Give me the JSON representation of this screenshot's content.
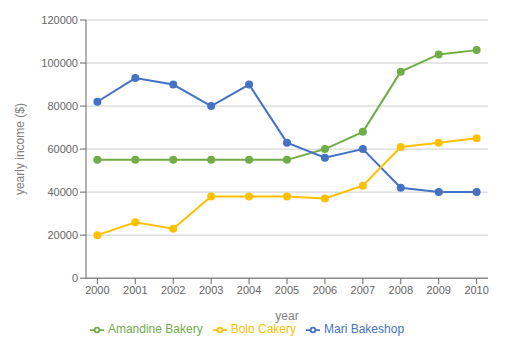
{
  "chart_data": {
    "type": "line",
    "x": [
      2000,
      2001,
      2002,
      2003,
      2004,
      2005,
      2006,
      2007,
      2008,
      2009,
      2010
    ],
    "series": [
      {
        "name": "Amandine Bakery",
        "color": "#70ad47",
        "marker": "circle",
        "line_style": "solid",
        "values": [
          55000,
          55000,
          55000,
          55000,
          55000,
          55000,
          60000,
          68000,
          96000,
          104000,
          106000
        ]
      },
      {
        "name": "Mari Bakeshop",
        "color": "#4472c4",
        "marker": "circle",
        "line_style": "solid",
        "values": [
          82000,
          93000,
          90000,
          80000,
          90000,
          63000,
          56000,
          60000,
          42000,
          40000,
          40000
        ]
      },
      {
        "name": "Bolo Cakery",
        "color": "#ffc000",
        "marker": "circle",
        "line_style": "solid",
        "values": [
          20000,
          26000,
          23000,
          38000,
          38000,
          38000,
          37000,
          43000,
          61000,
          63000,
          65000
        ]
      }
    ],
    "x_label": "year",
    "y_label": "yearly income ($)",
    "xlim": [
      1999.7,
      2010.3
    ],
    "xticks": [
      2000,
      2001,
      2002,
      2003,
      2004,
      2005,
      2006,
      2007,
      2008,
      2009,
      2010
    ],
    "ylim": [
      0,
      120000
    ],
    "yticks": [
      0,
      20000,
      40000,
      60000,
      80000,
      100000,
      120000
    ],
    "grid": true,
    "legend": "bottom"
  }
}
